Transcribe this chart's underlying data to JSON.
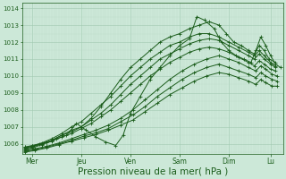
{
  "bg_color": "#cce8d8",
  "grid_color_minor": "#b8d8c4",
  "grid_color_major": "#a0c8b0",
  "line_color": "#1a5c1a",
  "marker_color": "#1a5c1a",
  "xlabel": "Pression niveau de la mer( hPa )",
  "xlabel_fontsize": 7.5,
  "yticks": [
    1006,
    1007,
    1008,
    1009,
    1010,
    1011,
    1012,
    1013,
    1014
  ],
  "ylim": [
    1005.4,
    1014.3
  ],
  "xlim": [
    0.0,
    5.3
  ],
  "xtick_labels": [
    "Mer",
    "Jeu",
    "Ven",
    "Sam",
    "Dim",
    "Lu"
  ],
  "xtick_positions": [
    0.2,
    1.2,
    2.2,
    3.2,
    4.2,
    5.05
  ],
  "series": [
    [
      0.05,
      1005.8,
      0.2,
      1005.9,
      0.35,
      1006.0,
      0.5,
      1006.1,
      0.7,
      1006.3,
      0.9,
      1006.5,
      1.1,
      1007.2,
      1.3,
      1006.8,
      1.5,
      1006.4,
      1.7,
      1006.1,
      1.9,
      1005.9,
      2.05,
      1006.5,
      2.2,
      1007.8,
      2.4,
      1008.8,
      2.6,
      1009.8,
      2.8,
      1010.5,
      3.0,
      1011.2,
      3.2,
      1011.8,
      3.4,
      1012.2,
      3.55,
      1013.5,
      3.7,
      1013.3,
      3.9,
      1012.8,
      4.05,
      1012.0,
      4.2,
      1011.5,
      4.35,
      1011.2,
      4.5,
      1011.0,
      4.65,
      1010.8,
      4.75,
      1011.5,
      4.85,
      1012.3,
      4.95,
      1011.8,
      5.05,
      1011.2,
      5.15,
      1010.7,
      5.25,
      1010.5
    ],
    [
      0.05,
      1005.8,
      0.2,
      1005.85,
      0.4,
      1006.0,
      0.6,
      1006.2,
      0.8,
      1006.5,
      1.0,
      1006.8,
      1.2,
      1007.0,
      1.4,
      1007.5,
      1.6,
      1008.2,
      1.8,
      1009.0,
      2.0,
      1009.8,
      2.2,
      1010.5,
      2.4,
      1011.0,
      2.6,
      1011.5,
      2.8,
      1012.0,
      3.0,
      1012.3,
      3.2,
      1012.5,
      3.4,
      1012.8,
      3.6,
      1013.0,
      3.8,
      1013.2,
      4.0,
      1013.0,
      4.15,
      1012.5,
      4.3,
      1012.0,
      4.45,
      1011.8,
      4.6,
      1011.5,
      4.72,
      1011.3,
      4.82,
      1011.8,
      4.92,
      1011.5,
      5.02,
      1011.0,
      5.15,
      1010.8
    ],
    [
      0.05,
      1005.75,
      0.2,
      1005.85,
      0.4,
      1006.05,
      0.6,
      1006.3,
      0.8,
      1006.6,
      1.0,
      1007.0,
      1.2,
      1007.3,
      1.4,
      1007.8,
      1.6,
      1008.3,
      1.8,
      1008.8,
      2.0,
      1009.4,
      2.2,
      1010.0,
      2.4,
      1010.5,
      2.6,
      1011.0,
      2.8,
      1011.4,
      3.0,
      1011.8,
      3.2,
      1012.0,
      3.4,
      1012.3,
      3.6,
      1012.5,
      3.8,
      1012.5,
      4.0,
      1012.3,
      4.2,
      1012.0,
      4.4,
      1011.7,
      4.6,
      1011.4,
      4.72,
      1011.2,
      4.82,
      1011.5,
      4.92,
      1011.2,
      5.05,
      1010.8,
      5.15,
      1010.6
    ],
    [
      0.05,
      1005.7,
      0.2,
      1005.8,
      0.4,
      1006.0,
      0.6,
      1006.2,
      0.8,
      1006.5,
      1.0,
      1006.7,
      1.2,
      1007.0,
      1.4,
      1007.4,
      1.6,
      1007.8,
      1.8,
      1008.3,
      2.0,
      1008.9,
      2.2,
      1009.5,
      2.4,
      1010.0,
      2.6,
      1010.5,
      2.8,
      1011.0,
      3.0,
      1011.3,
      3.2,
      1011.6,
      3.4,
      1011.9,
      3.6,
      1012.1,
      3.8,
      1012.2,
      4.0,
      1012.1,
      4.2,
      1011.8,
      4.4,
      1011.5,
      4.6,
      1011.2,
      4.72,
      1011.0,
      4.82,
      1011.3,
      4.92,
      1011.0,
      5.05,
      1010.7,
      5.15,
      1010.5
    ],
    [
      0.05,
      1005.65,
      0.2,
      1005.75,
      0.4,
      1005.95,
      0.6,
      1006.15,
      0.8,
      1006.4,
      1.0,
      1006.6,
      1.2,
      1006.9,
      1.4,
      1007.2,
      1.6,
      1007.6,
      1.8,
      1008.0,
      2.0,
      1008.5,
      2.2,
      1009.0,
      2.4,
      1009.5,
      2.6,
      1010.0,
      2.8,
      1010.4,
      3.0,
      1010.8,
      3.2,
      1011.1,
      3.4,
      1011.4,
      3.6,
      1011.6,
      3.8,
      1011.7,
      4.0,
      1011.6,
      4.2,
      1011.4,
      4.4,
      1011.1,
      4.6,
      1010.8,
      4.72,
      1010.6,
      4.82,
      1010.9,
      4.92,
      1010.7,
      5.05,
      1010.4,
      5.15,
      1010.3
    ],
    [
      0.05,
      1005.6,
      0.25,
      1005.7,
      0.5,
      1005.85,
      0.75,
      1006.05,
      1.0,
      1006.3,
      1.25,
      1006.55,
      1.5,
      1006.8,
      1.75,
      1007.1,
      2.0,
      1007.5,
      2.25,
      1008.0,
      2.5,
      1008.6,
      2.75,
      1009.2,
      3.0,
      1009.8,
      3.25,
      1010.3,
      3.5,
      1010.7,
      3.75,
      1011.0,
      4.0,
      1011.2,
      4.2,
      1011.0,
      4.4,
      1010.8,
      4.6,
      1010.5,
      4.75,
      1010.3,
      4.85,
      1010.6,
      4.95,
      1010.4,
      5.08,
      1010.1,
      5.18,
      1010.0
    ],
    [
      0.05,
      1005.55,
      0.25,
      1005.65,
      0.5,
      1005.8,
      0.75,
      1006.0,
      1.0,
      1006.2,
      1.25,
      1006.45,
      1.5,
      1006.65,
      1.75,
      1006.9,
      2.0,
      1007.3,
      2.25,
      1007.7,
      2.5,
      1008.2,
      2.75,
      1008.8,
      3.0,
      1009.3,
      3.25,
      1009.8,
      3.5,
      1010.2,
      3.75,
      1010.5,
      4.0,
      1010.7,
      4.2,
      1010.5,
      4.4,
      1010.3,
      4.6,
      1010.1,
      4.75,
      1009.9,
      4.85,
      1010.2,
      4.95,
      1010.0,
      5.08,
      1009.8,
      5.18,
      1009.7
    ],
    [
      0.05,
      1005.5,
      0.25,
      1005.6,
      0.5,
      1005.75,
      0.75,
      1005.95,
      1.0,
      1006.15,
      1.25,
      1006.35,
      1.5,
      1006.55,
      1.75,
      1006.8,
      2.0,
      1007.1,
      2.25,
      1007.4,
      2.5,
      1007.9,
      2.75,
      1008.4,
      3.0,
      1008.9,
      3.25,
      1009.3,
      3.5,
      1009.7,
      3.75,
      1010.0,
      4.0,
      1010.2,
      4.2,
      1010.1,
      4.4,
      1009.9,
      4.6,
      1009.7,
      4.75,
      1009.5,
      4.85,
      1009.8,
      4.95,
      1009.6,
      5.08,
      1009.4,
      5.18,
      1009.4
    ]
  ]
}
